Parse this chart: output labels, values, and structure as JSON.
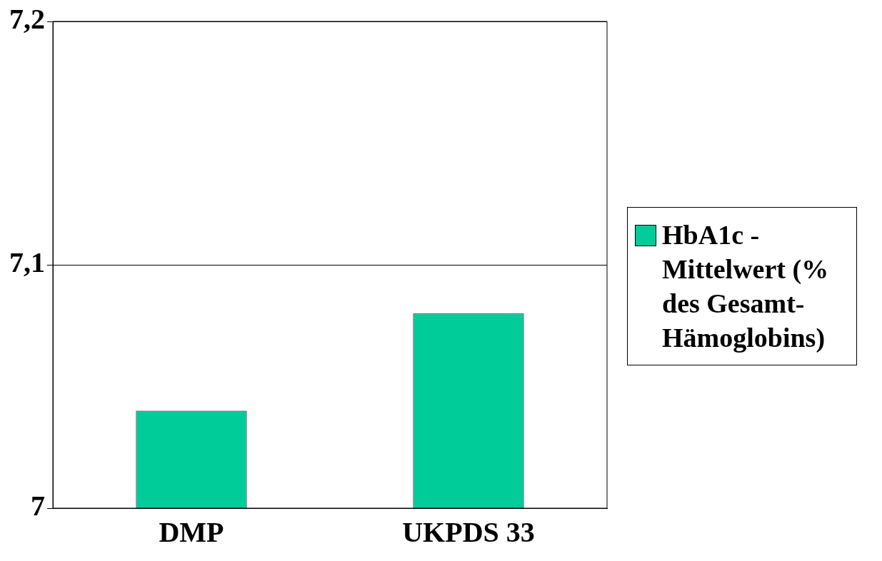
{
  "chart_data": {
    "type": "bar",
    "categories": [
      "DMP",
      "UKPDS 33"
    ],
    "series": [
      {
        "name": "HbA1c - Mittelwert (% des Gesamt-Hämoglobins)",
        "color": "#00cc99",
        "values": [
          7.04,
          7.08
        ]
      }
    ],
    "ylim": [
      7,
      7.2
    ],
    "yticks": [
      7,
      {
        "value": 7.1,
        "label": "7,1"
      },
      {
        "value": 7.2,
        "label": "7,2"
      }
    ],
    "grid": "y",
    "legend": "right"
  }
}
